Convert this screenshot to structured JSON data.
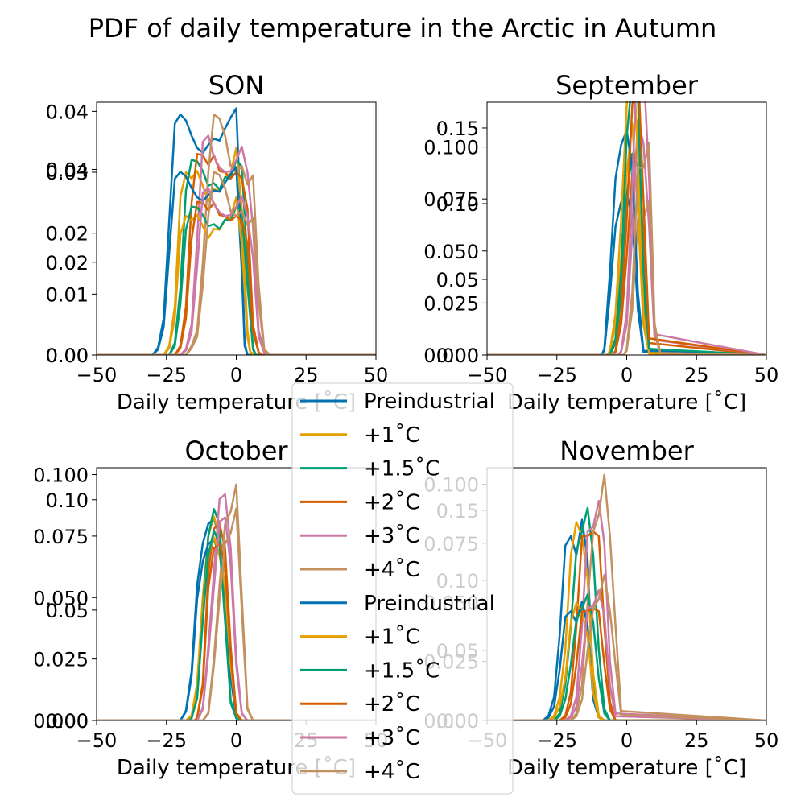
{
  "suptitle": "PDF of daily temperature in the Arctic in Autumn",
  "colors": {
    "Preindustrial": "#0072B2",
    "+1°C": "#E69F00",
    "+1.5°C": "#009E73",
    "+2°C": "#D55E00",
    "+3°C": "#CC79A7",
    "+4°C": "#C2915F"
  },
  "legend": {
    "placement": "center",
    "entries": [
      "Preindustrial",
      "+1˚C",
      "+1.5˚C",
      "+2˚C",
      "+3˚C",
      "+4˚C",
      "Preindustrial",
      "+1˚C",
      "+1.5˚C",
      "+2˚C",
      "+3˚C",
      "+4˚C"
    ]
  },
  "chart_data": [
    {
      "type": "line",
      "title": "SON",
      "xlabel": "Daily temperature [˚C]",
      "xlim": [
        -50,
        50
      ],
      "xticks": [
        -50,
        -25,
        0,
        25,
        50
      ],
      "xtick_labels": [
        "−50",
        "−25",
        "0",
        "25",
        "50"
      ],
      "ylim_left": [
        0,
        0.0415
      ],
      "yticks_left": [
        0,
        0.01,
        0.02,
        0.03,
        0.04
      ],
      "ytick_labels_left": [
        "0.00",
        "0.01",
        "0.02",
        "0.03",
        "0.04"
      ],
      "ylim_right": [
        0,
        0.0545
      ],
      "yticks_right": [
        0,
        0.02,
        0.04
      ],
      "ytick_labels_right": [
        "0.00",
        "0.02",
        "0.04"
      ],
      "series": [
        {
          "name": "Preindustrial",
          "x": [
            -50,
            -30,
            -28,
            -26,
            -24,
            -22,
            -20,
            -18,
            -16,
            -14,
            -12,
            -10,
            -8,
            -6,
            -4,
            -2,
            0,
            2,
            3,
            4,
            6,
            50
          ],
          "y": [
            0,
            0,
            0.0012,
            0.006,
            0.022,
            0.038,
            0.0395,
            0.0385,
            0.036,
            0.034,
            0.0332,
            0.0345,
            0.0355,
            0.0352,
            0.0372,
            0.039,
            0.0405,
            0.018,
            0.002,
            0,
            0,
            0
          ]
        },
        {
          "name": "+1°C",
          "x": [
            -50,
            -26,
            -24,
            -22,
            -20,
            -18,
            -16,
            -14,
            -12,
            -10,
            -8,
            -6,
            -4,
            -2,
            0,
            2,
            4,
            5,
            7,
            50
          ],
          "y": [
            0,
            0,
            0.0015,
            0.008,
            0.026,
            0.03,
            0.029,
            0.0302,
            0.0278,
            0.0252,
            0.0272,
            0.027,
            0.0292,
            0.0298,
            0.034,
            0.024,
            0.004,
            0.0005,
            0,
            0
          ]
        },
        {
          "name": "+1.5°C",
          "x": [
            -50,
            -24,
            -22,
            -20,
            -18,
            -16,
            -14,
            -12,
            -10,
            -8,
            -6,
            -4,
            -2,
            0,
            2,
            4,
            6,
            7,
            50
          ],
          "y": [
            0,
            0,
            0.002,
            0.011,
            0.027,
            0.032,
            0.0318,
            0.0302,
            0.0278,
            0.0282,
            0.0272,
            0.0292,
            0.029,
            0.032,
            0.031,
            0.015,
            0.0012,
            0,
            0
          ]
        },
        {
          "name": "+2°C",
          "x": [
            -50,
            -22,
            -20,
            -18,
            -16,
            -14,
            -12,
            -10,
            -8,
            -6,
            -4,
            -2,
            0,
            2,
            4,
            6,
            8,
            9,
            50
          ],
          "y": [
            0,
            0,
            0.0015,
            0.008,
            0.025,
            0.033,
            0.0328,
            0.0312,
            0.0328,
            0.0302,
            0.03,
            0.029,
            0.03,
            0.029,
            0.024,
            0.005,
            0.0005,
            0,
            0
          ]
        },
        {
          "name": "+3°C",
          "x": [
            -50,
            -20,
            -18,
            -16,
            -14,
            -12,
            -10,
            -8,
            -6,
            -4,
            -2,
            0,
            2,
            4,
            6,
            8,
            10,
            11,
            50
          ],
          "y": [
            0,
            0,
            0.001,
            0.005,
            0.019,
            0.035,
            0.036,
            0.0325,
            0.0308,
            0.03,
            0.0302,
            0.032,
            0.0342,
            0.03,
            0.021,
            0.004,
            0.0005,
            0,
            0
          ]
        },
        {
          "name": "+4°C",
          "x": [
            -50,
            -18,
            -16,
            -14,
            -12,
            -10,
            -8,
            -6,
            -4,
            -2,
            0,
            2,
            4,
            6,
            8,
            10,
            12,
            50
          ],
          "y": [
            0,
            0,
            0.0015,
            0.004,
            0.015,
            0.03,
            0.0395,
            0.0388,
            0.036,
            0.031,
            0.03,
            0.031,
            0.028,
            0.0295,
            0.0115,
            0.001,
            0,
            0
          ]
        }
      ]
    },
    {
      "type": "line",
      "title": "September",
      "xlabel": "Daily temperature [˚C]",
      "xlim": [
        -50,
        50
      ],
      "xticks": [
        -50,
        -25,
        0,
        25,
        50
      ],
      "xtick_labels": [
        "−50",
        "−25",
        "0",
        "25",
        "50"
      ],
      "ylim_left": [
        0,
        0.167
      ],
      "yticks_left": [
        0,
        0.05,
        0.1,
        0.15
      ],
      "ytick_labels_left": [
        "0.00",
        "0.05",
        "0.10",
        "0.15"
      ],
      "ylim_right": [
        0,
        0.1215
      ],
      "yticks_right": [
        0,
        0.025,
        0.05,
        0.075,
        0.1
      ],
      "ytick_labels_right": [
        "0.000",
        "0.025",
        "0.050",
        "0.075",
        "0.100"
      ],
      "series": [
        {
          "name": "Preindustrial",
          "x": [
            -50,
            -9,
            -8,
            -6,
            -4,
            -2,
            0,
            2,
            4,
            6,
            50
          ],
          "y": [
            0,
            0,
            0.003,
            0.04,
            0.085,
            0.101,
            0.108,
            0.09,
            0.03,
            0.002,
            0
          ]
        },
        {
          "name": "+1°C",
          "x": [
            -50,
            -7,
            -6,
            -4,
            -2,
            0,
            2,
            4,
            6,
            8,
            50
          ],
          "y": [
            0,
            0,
            0.002,
            0.02,
            0.065,
            0.12,
            0.153,
            0.095,
            0.02,
            0.001,
            0
          ]
        },
        {
          "name": "+1.5°C",
          "x": [
            -50,
            -6,
            -4,
            -2,
            0,
            2,
            4,
            6,
            8,
            50
          ],
          "y": [
            0,
            0,
            0.008,
            0.04,
            0.105,
            0.133,
            0.125,
            0.04,
            0.003,
            0
          ]
        },
        {
          "name": "+2°C",
          "x": [
            -50,
            -5,
            -4,
            -2,
            0,
            2,
            4,
            6,
            8,
            50
          ],
          "y": [
            0,
            0,
            0.002,
            0.02,
            0.065,
            0.12,
            0.14,
            0.075,
            0.008,
            0
          ]
        },
        {
          "name": "+3°C",
          "x": [
            -50,
            -3,
            -2,
            0,
            2,
            4,
            6,
            8,
            10,
            50
          ],
          "y": [
            0,
            0,
            0.002,
            0.02,
            0.08,
            0.155,
            0.14,
            0.085,
            0.01,
            0
          ]
        },
        {
          "name": "+4°C",
          "x": [
            -50,
            -1,
            0,
            2,
            4,
            6,
            8,
            10,
            12,
            50
          ],
          "y": [
            0,
            0,
            0.003,
            0.03,
            0.09,
            0.09,
            0.102,
            0.015,
            0.001,
            0
          ]
        }
      ]
    },
    {
      "type": "line",
      "title": "October",
      "xlabel": "Daily temperature [˚C]",
      "xlim": [
        -50,
        50
      ],
      "xticks": [
        -50,
        -25,
        0,
        25,
        50
      ],
      "xtick_labels": [
        "−50",
        "−25",
        "0",
        "25",
        "50"
      ],
      "ylim_left": [
        0,
        0.1028
      ],
      "yticks_left": [
        0,
        0.025,
        0.05,
        0.075,
        0.1
      ],
      "ytick_labels_left": [
        "0.000",
        "0.025",
        "0.050",
        "0.075",
        "0.100"
      ],
      "ylim_right": [
        0,
        0.1145
      ],
      "yticks_right": [
        0,
        0.05,
        0.1
      ],
      "ytick_labels_right": [
        "0.00",
        "0.05",
        "0.10"
      ],
      "series": [
        {
          "name": "Preindustrial",
          "x": [
            -50,
            -20,
            -18,
            -16,
            -14,
            -12,
            -10,
            -8,
            -6,
            -4,
            -2,
            0,
            2,
            50
          ],
          "y": [
            0,
            0,
            0.004,
            0.02,
            0.055,
            0.072,
            0.08,
            0.082,
            0.075,
            0.06,
            0.02,
            0.001,
            0,
            0
          ]
        },
        {
          "name": "+1°C",
          "x": [
            -50,
            -18,
            -16,
            -14,
            -12,
            -10,
            -8,
            -6,
            -4,
            -2,
            0,
            2,
            50
          ],
          "y": [
            0,
            0,
            0.002,
            0.015,
            0.05,
            0.075,
            0.083,
            0.075,
            0.06,
            0.025,
            0.003,
            0,
            0
          ]
        },
        {
          "name": "+1.5°C",
          "x": [
            -50,
            -17,
            -16,
            -14,
            -12,
            -10,
            -8,
            -6,
            -4,
            -2,
            0,
            2,
            50
          ],
          "y": [
            0,
            0,
            0.001,
            0.01,
            0.045,
            0.075,
            0.086,
            0.08,
            0.045,
            0.008,
            0.001,
            0,
            0
          ]
        },
        {
          "name": "+2°C",
          "x": [
            -50,
            -15,
            -14,
            -12,
            -10,
            -8,
            -6,
            -4,
            -2,
            0,
            2,
            50
          ],
          "y": [
            0,
            0,
            0.001,
            0.015,
            0.06,
            0.078,
            0.08,
            0.07,
            0.03,
            0.003,
            0,
            0
          ]
        },
        {
          "name": "+3°C",
          "x": [
            -50,
            -14,
            -12,
            -10,
            -8,
            -6,
            -4,
            -2,
            0,
            2,
            4,
            50
          ],
          "y": [
            0,
            0,
            0.005,
            0.03,
            0.06,
            0.09,
            0.092,
            0.07,
            0.025,
            0.003,
            0,
            0
          ]
        },
        {
          "name": "+4°C",
          "x": [
            -50,
            -12,
            -10,
            -8,
            -6,
            -4,
            -2,
            0,
            2,
            4,
            6,
            50
          ],
          "y": [
            0,
            0,
            0.003,
            0.025,
            0.055,
            0.08,
            0.085,
            0.096,
            0.05,
            0.005,
            0,
            0
          ]
        }
      ]
    },
    {
      "type": "line",
      "title": "November",
      "xlabel": "Daily temperature [˚C]",
      "xlim": [
        -50,
        50
      ],
      "xticks": [
        -50,
        -25,
        0,
        25,
        50
      ],
      "xtick_labels": [
        "−50",
        "−25",
        "0",
        "25",
        "50"
      ],
      "ylim_left": [
        0,
        0.107
      ],
      "yticks_left": [
        0,
        0.025,
        0.05,
        0.075,
        0.1
      ],
      "ytick_labels_left": [
        "0.000",
        "0.025",
        "0.050",
        "0.075",
        "0.100"
      ],
      "ylim_right": [
        0,
        0.1805
      ],
      "yticks_right": [
        0,
        0.05,
        0.1,
        0.15
      ],
      "ytick_labels_right": [
        "0.00",
        "0.05",
        "0.10",
        "0.15"
      ],
      "series": [
        {
          "name": "Preindustrial",
          "x": [
            -50,
            -30,
            -28,
            -26,
            -24,
            -22,
            -20,
            -18,
            -16,
            -14,
            -12,
            -10,
            -8,
            50
          ],
          "y": [
            0,
            0,
            0.002,
            0.01,
            0.036,
            0.074,
            0.078,
            0.07,
            0.085,
            0.068,
            0.015,
            0.002,
            0,
            0
          ]
        },
        {
          "name": "+1°C",
          "x": [
            -50,
            -28,
            -26,
            -24,
            -22,
            -20,
            -18,
            -16,
            -14,
            -12,
            -10,
            -8,
            50
          ],
          "y": [
            0,
            0,
            0.002,
            0.01,
            0.03,
            0.07,
            0.084,
            0.078,
            0.06,
            0.02,
            0.002,
            0,
            0
          ]
        },
        {
          "name": "+1.5°C",
          "x": [
            -50,
            -26,
            -24,
            -22,
            -20,
            -18,
            -16,
            -14,
            -12,
            -10,
            -8,
            -6,
            50
          ],
          "y": [
            0,
            0,
            0.003,
            0.015,
            0.04,
            0.072,
            0.08,
            0.09,
            0.07,
            0.03,
            0.005,
            0,
            0
          ]
        },
        {
          "name": "+2°C",
          "x": [
            -50,
            -24,
            -22,
            -20,
            -18,
            -16,
            -14,
            -12,
            -10,
            -8,
            -6,
            -4,
            50
          ],
          "y": [
            0,
            0,
            0.002,
            0.012,
            0.04,
            0.078,
            0.078,
            0.08,
            0.078,
            0.04,
            0.008,
            0,
            0
          ]
        },
        {
          "name": "+3°C",
          "x": [
            -50,
            -22,
            -20,
            -18,
            -16,
            -14,
            -12,
            -10,
            -8,
            -6,
            -4,
            50
          ],
          "y": [
            0,
            0,
            0.002,
            0.01,
            0.04,
            0.08,
            0.082,
            0.093,
            0.075,
            0.025,
            0.003,
            0
          ]
        },
        {
          "name": "+4°C",
          "x": [
            -50,
            -20,
            -18,
            -16,
            -14,
            -12,
            -10,
            -8,
            -6,
            -4,
            -2,
            50
          ],
          "y": [
            0,
            0,
            0.003,
            0.015,
            0.05,
            0.08,
            0.087,
            0.104,
            0.078,
            0.04,
            0.004,
            0
          ]
        }
      ]
    }
  ]
}
